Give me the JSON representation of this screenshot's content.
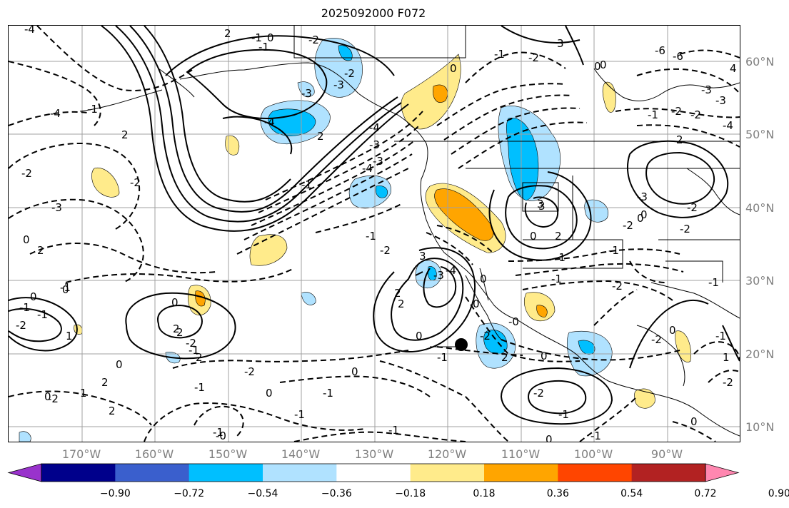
{
  "title": "2025092000 F072",
  "latitude_labels": [
    "60°N",
    "50°N",
    "40°N",
    "30°N",
    "20°N",
    "10°N"
  ],
  "longitude_labels": [
    "170°W",
    "160°W",
    "150°W",
    "140°W",
    "130°W",
    "120°W",
    "110°W",
    "100°W",
    "90°W"
  ],
  "colorbar": {
    "colors": [
      "#9932cc",
      "#00008b",
      "#3a5fcd",
      "#00bfff",
      "#b0e2ff",
      "#ffffff",
      "#ffeb8b",
      "#ffa500",
      "#ff4500",
      "#b22222",
      "#ff87b0"
    ],
    "tick_labels": [
      "−0.90",
      "−0.72",
      "−0.54",
      "−0.36",
      "−0.18",
      "0.18",
      "0.36",
      "0.54",
      "0.72",
      "0.90"
    ]
  },
  "contour_labels": [
    "-1",
    "0",
    "2",
    "3",
    "-6",
    "-4",
    "2",
    "-3",
    "-2",
    "-4",
    "-3",
    "0",
    "-1",
    "3",
    "2",
    "-1",
    "-2",
    "-4",
    "-3",
    "-1",
    "2",
    "0",
    "2",
    "-1",
    "-2",
    "0",
    "3",
    "-3",
    "-2",
    "0",
    "-1",
    "4",
    "0",
    "-1",
    "-2",
    "-3",
    "-4",
    "-1",
    "0",
    "-1",
    "-2",
    "-3",
    "-2",
    "-1",
    "0",
    "-2",
    "-1",
    "-4",
    "-2",
    "-2",
    "0",
    "-6",
    "-3",
    "-4",
    "0",
    "-1",
    "-2",
    "-3",
    "-4",
    "0",
    "0",
    "2",
    "-1",
    "0",
    "2",
    "2",
    "-1",
    "-2",
    "0",
    "-1",
    "-2",
    "-1",
    "0",
    "-2",
    "0",
    "2",
    "1",
    "-0",
    "2",
    "-2",
    "-1",
    "0",
    "-0",
    "-1",
    "3",
    "2",
    "0",
    "-3",
    "-2",
    "-1",
    "1",
    "-2",
    "-1",
    "-1",
    "-2",
    "2",
    "-2",
    "-1",
    "0",
    "0",
    "-1",
    "-1",
    "0",
    "-2",
    "0",
    "2",
    "1",
    "2",
    "-1",
    "0"
  ]
}
